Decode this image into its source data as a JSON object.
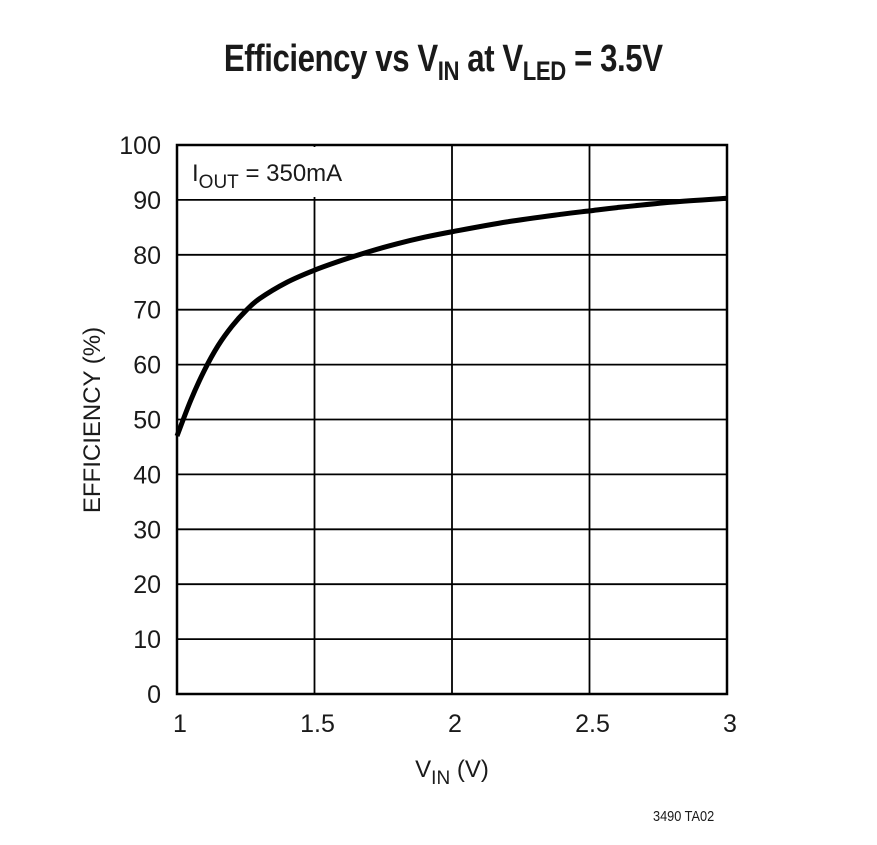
{
  "title": {
    "prefix": "Efficiency vs V",
    "sub1": "IN",
    "mid": " at V",
    "sub2": "LED",
    "suffix": " = 3.5V"
  },
  "annotation": {
    "main": "I",
    "sub": "OUT",
    "rest": " = 350mA"
  },
  "xaxis": {
    "label_main": "V",
    "label_sub": "IN",
    "label_rest": " (V)",
    "ticks": [
      "1",
      "1.5",
      "2",
      "2.5",
      "3"
    ]
  },
  "yaxis": {
    "label": "EFFICIENCY (%)",
    "ticks": [
      "0",
      "10",
      "20",
      "30",
      "40",
      "50",
      "60",
      "70",
      "80",
      "90",
      "100"
    ]
  },
  "figure_code": "3490 TA02",
  "colors": {
    "line": "#000000",
    "grid": "#000000",
    "text": "#1a1a1a",
    "background": "#ffffff"
  },
  "chart_data": {
    "type": "line",
    "title": "Efficiency vs VIN at VLED = 3.5V",
    "xlabel": "VIN (V)",
    "ylabel": "EFFICIENCY (%)",
    "xlim": [
      1,
      3
    ],
    "ylim": [
      0,
      100
    ],
    "xticks": [
      1,
      1.5,
      2,
      2.5,
      3
    ],
    "yticks": [
      0,
      10,
      20,
      30,
      40,
      50,
      60,
      70,
      80,
      90,
      100
    ],
    "grid": true,
    "legend": null,
    "annotations": [
      "IOUT = 350mA"
    ],
    "series": [
      {
        "name": "IOUT = 350mA",
        "x": [
          1.0,
          1.05,
          1.1,
          1.15,
          1.2,
          1.25,
          1.3,
          1.4,
          1.5,
          1.6,
          1.7,
          1.8,
          1.9,
          2.0,
          2.2,
          2.4,
          2.5,
          2.6,
          2.8,
          3.0
        ],
        "y": [
          47.0,
          53.5,
          59.0,
          63.5,
          67.0,
          69.8,
          72.0,
          75.0,
          77.2,
          79.0,
          80.6,
          82.0,
          83.2,
          84.2,
          86.0,
          87.4,
          88.0,
          88.6,
          89.6,
          90.3
        ]
      }
    ]
  }
}
